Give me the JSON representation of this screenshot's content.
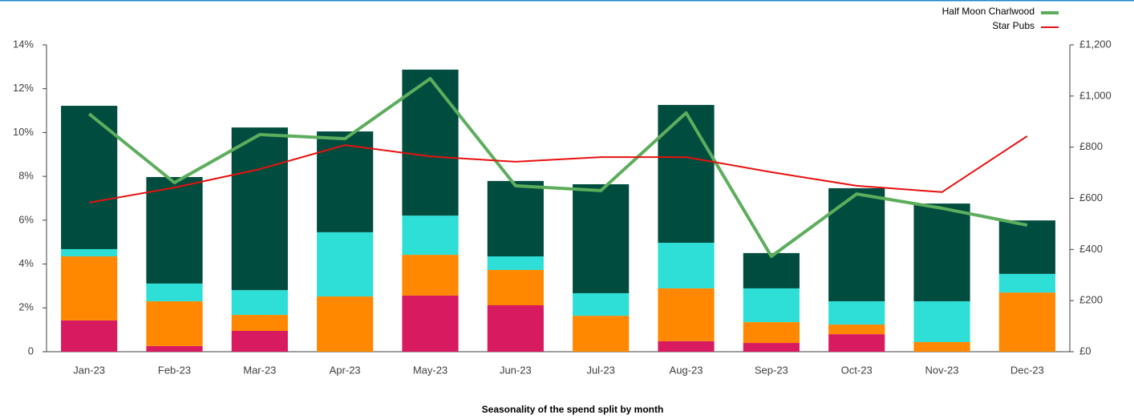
{
  "chart_data": {
    "type": "bar",
    "title": "Seasonality of the spend split by month",
    "categories": [
      "Jan-23",
      "Feb-23",
      "Mar-23",
      "Apr-23",
      "May-23",
      "Jun-23",
      "Jul-23",
      "Aug-23",
      "Sep-23",
      "Oct-23",
      "Nov-23",
      "Dec-23"
    ],
    "series": [
      {
        "color": "#d81b60",
        "values": [
          1.43,
          0.26,
          0.95,
          0,
          2.56,
          2.12,
          0,
          0.48,
          0.4,
          0.8,
          0,
          0
        ]
      },
      {
        "color": "#ff8800",
        "values": [
          2.92,
          2.04,
          0.73,
          2.52,
          1.86,
          1.61,
          1.64,
          2.41,
          0.95,
          0.44,
          0.44,
          2.7
        ]
      },
      {
        "color": "#2ddfd6",
        "values": [
          0.33,
          0.81,
          1.13,
          2.93,
          1.79,
          0.62,
          1.03,
          2.08,
          1.54,
          1.06,
          1.86,
          0.85
        ]
      },
      {
        "color": "#004d3f",
        "values": [
          6.54,
          4.86,
          7.42,
          4.6,
          6.66,
          3.44,
          4.97,
          6.29,
          1.61,
          5.16,
          4.46,
          2.44
        ]
      },
      {
        "name": "Half Moon Charlwood",
        "type": "line",
        "axis": "y2",
        "color": "#5cad5c",
        "values": [
          930,
          661,
          849,
          833,
          1068,
          649,
          630,
          934,
          373,
          617,
          561,
          495
        ]
      },
      {
        "name": "Star Pubs",
        "type": "line",
        "axis": "y2",
        "color": "#e8100f",
        "values": [
          583,
          642,
          714,
          808,
          764,
          743,
          761,
          761,
          702,
          649,
          624,
          843
        ]
      }
    ],
    "ylim": [
      0,
      14
    ],
    "yticks": [
      0,
      {
        "value": 2,
        "label": "2%"
      },
      {
        "value": 4,
        "label": "4%"
      },
      {
        "value": 6,
        "label": "6%"
      },
      {
        "value": 8,
        "label": "8%"
      },
      {
        "value": 10,
        "label": "10%"
      },
      {
        "value": 12,
        "label": "12%"
      },
      {
        "value": 14,
        "label": "14%"
      }
    ],
    "y2lim": [
      0,
      1200
    ],
    "y2ticks": [
      {
        "value": 0,
        "label": "£0"
      },
      {
        "value": 200,
        "label": "£200"
      },
      {
        "value": 400,
        "label": "£400"
      },
      {
        "value": 600,
        "label": "£600"
      },
      {
        "value": 800,
        "label": "£800"
      },
      {
        "value": 1000,
        "label": "£1,000"
      },
      {
        "value": 1200,
        "label": "£1,200"
      }
    ],
    "legend": "top-right"
  }
}
